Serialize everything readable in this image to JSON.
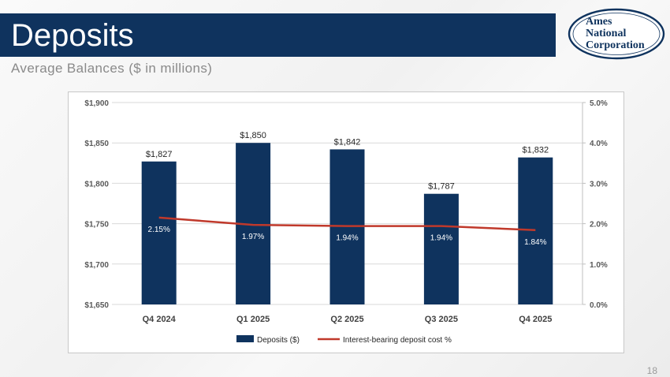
{
  "slide": {
    "title": "Deposits",
    "subtitle": "Average Balances ($ in millions)",
    "page_number": "18"
  },
  "logo": {
    "text_lines": [
      "Ames",
      "National",
      "Corporation"
    ],
    "color": "#0f335e"
  },
  "colors": {
    "title_bar": "#0f335e",
    "bar": "#0f335e",
    "line": "#c0392b"
  },
  "chart_data": {
    "type": "bar",
    "categories": [
      "Q4 2024",
      "Q1 2025",
      "Q2 2025",
      "Q3 2025",
      "Q4 2025"
    ],
    "series": [
      {
        "name": "Deposits ($)",
        "type": "bar",
        "axis": "left",
        "values": [
          1827,
          1850,
          1842,
          1787,
          1832
        ],
        "labels": [
          "$1,827",
          "$1,850",
          "$1,842",
          "$1,787",
          "$1,832"
        ]
      },
      {
        "name": "Interest-bearing deposit cost %",
        "type": "line",
        "axis": "right",
        "values": [
          2.15,
          1.97,
          1.94,
          1.94,
          1.84
        ],
        "labels": [
          "2.15%",
          "1.97%",
          "1.94%",
          "1.94%",
          "1.84%"
        ]
      }
    ],
    "y_left": {
      "min": 1650,
      "max": 1900,
      "ticks": [
        1900,
        1850,
        1800,
        1750,
        1700,
        1650
      ],
      "tick_labels": [
        "$1,900",
        "$1,850",
        "$1,800",
        "$1,750",
        "$1,700",
        "$1,650"
      ]
    },
    "y_right": {
      "min": 0,
      "max": 5,
      "ticks": [
        5,
        4,
        3,
        2,
        1,
        0
      ],
      "tick_labels": [
        "5.0%",
        "4.0%",
        "3.0%",
        "2.0%",
        "1.0%",
        "0.0%"
      ]
    },
    "grid": true,
    "legend_position": "bottom"
  }
}
